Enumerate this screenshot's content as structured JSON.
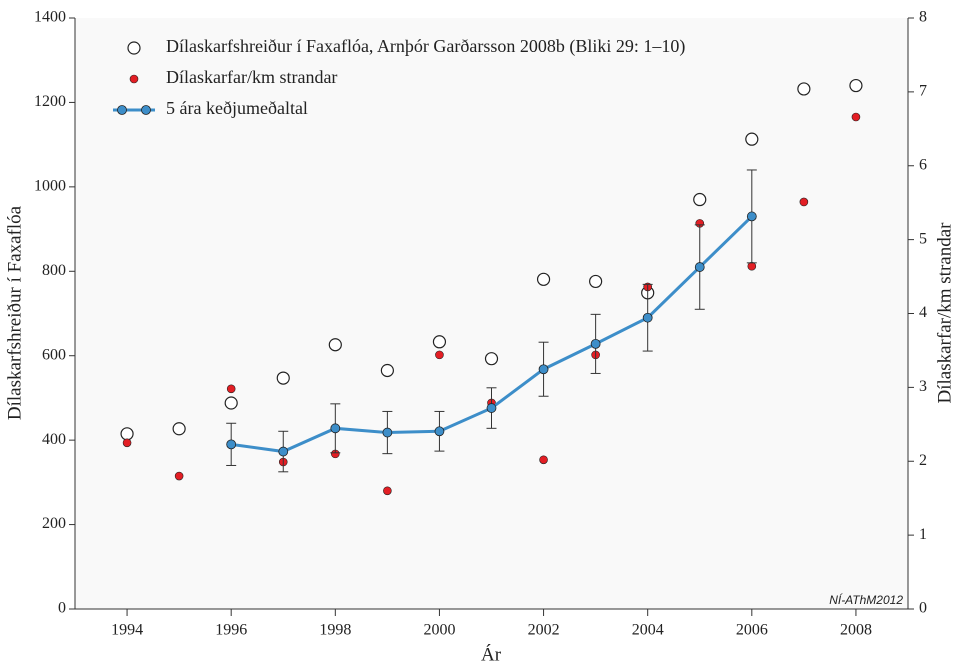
{
  "chart_data": {
    "type": "scatter",
    "xlabel": "Ár",
    "ylabel": "Dílaskarfshreiður í Faxaflóa",
    "y2label": "Dílaskarfar/km strandar",
    "annotation": "NÍ-AThM2012",
    "x": [
      1994,
      1995,
      1996,
      1997,
      1998,
      1999,
      2000,
      2001,
      2002,
      2003,
      2004,
      2005,
      2006,
      2007,
      2008
    ],
    "xlim": [
      1993,
      2009
    ],
    "xticks": [
      1994,
      1996,
      1998,
      2000,
      2002,
      2004,
      2006,
      2008
    ],
    "ylim": [
      0,
      1400
    ],
    "yticks": [
      0,
      200,
      400,
      600,
      800,
      1000,
      1200,
      1400
    ],
    "y2lim": [
      0,
      8
    ],
    "y2ticks": [
      0,
      1,
      2,
      3,
      4,
      5,
      6,
      7,
      8
    ],
    "series": [
      {
        "name": "Dílaskarfshreiður í Faxaflóa, Arnþór Garðarsson 2008b (Bliki 29: 1–10)",
        "color": "#ffffff",
        "marker": "open",
        "values": [
          415,
          427,
          488,
          547,
          626,
          565,
          633,
          593,
          781,
          776,
          749,
          970,
          1113,
          1232,
          1240
        ]
      },
      {
        "name": "Dílaskarfar/km strandar",
        "color": "#e31e24",
        "marker": "dot",
        "axis": "y2",
        "values": [
          2.25,
          1.8,
          2.98,
          1.99,
          2.1,
          1.6,
          3.44,
          2.79,
          2.02,
          3.44,
          4.36,
          5.22,
          4.64,
          5.51,
          6.66
        ]
      },
      {
        "name": "5 ára keðjumeðaltal",
        "color": "#3d8ec9",
        "marker": "line",
        "values": [
          null,
          null,
          390,
          373,
          428,
          418,
          421,
          476,
          568,
          628,
          690,
          810,
          930,
          null,
          null
        ],
        "errors": [
          null,
          null,
          50,
          48,
          58,
          50,
          47,
          48,
          64,
          70,
          79,
          100,
          110,
          null,
          null
        ]
      }
    ]
  }
}
